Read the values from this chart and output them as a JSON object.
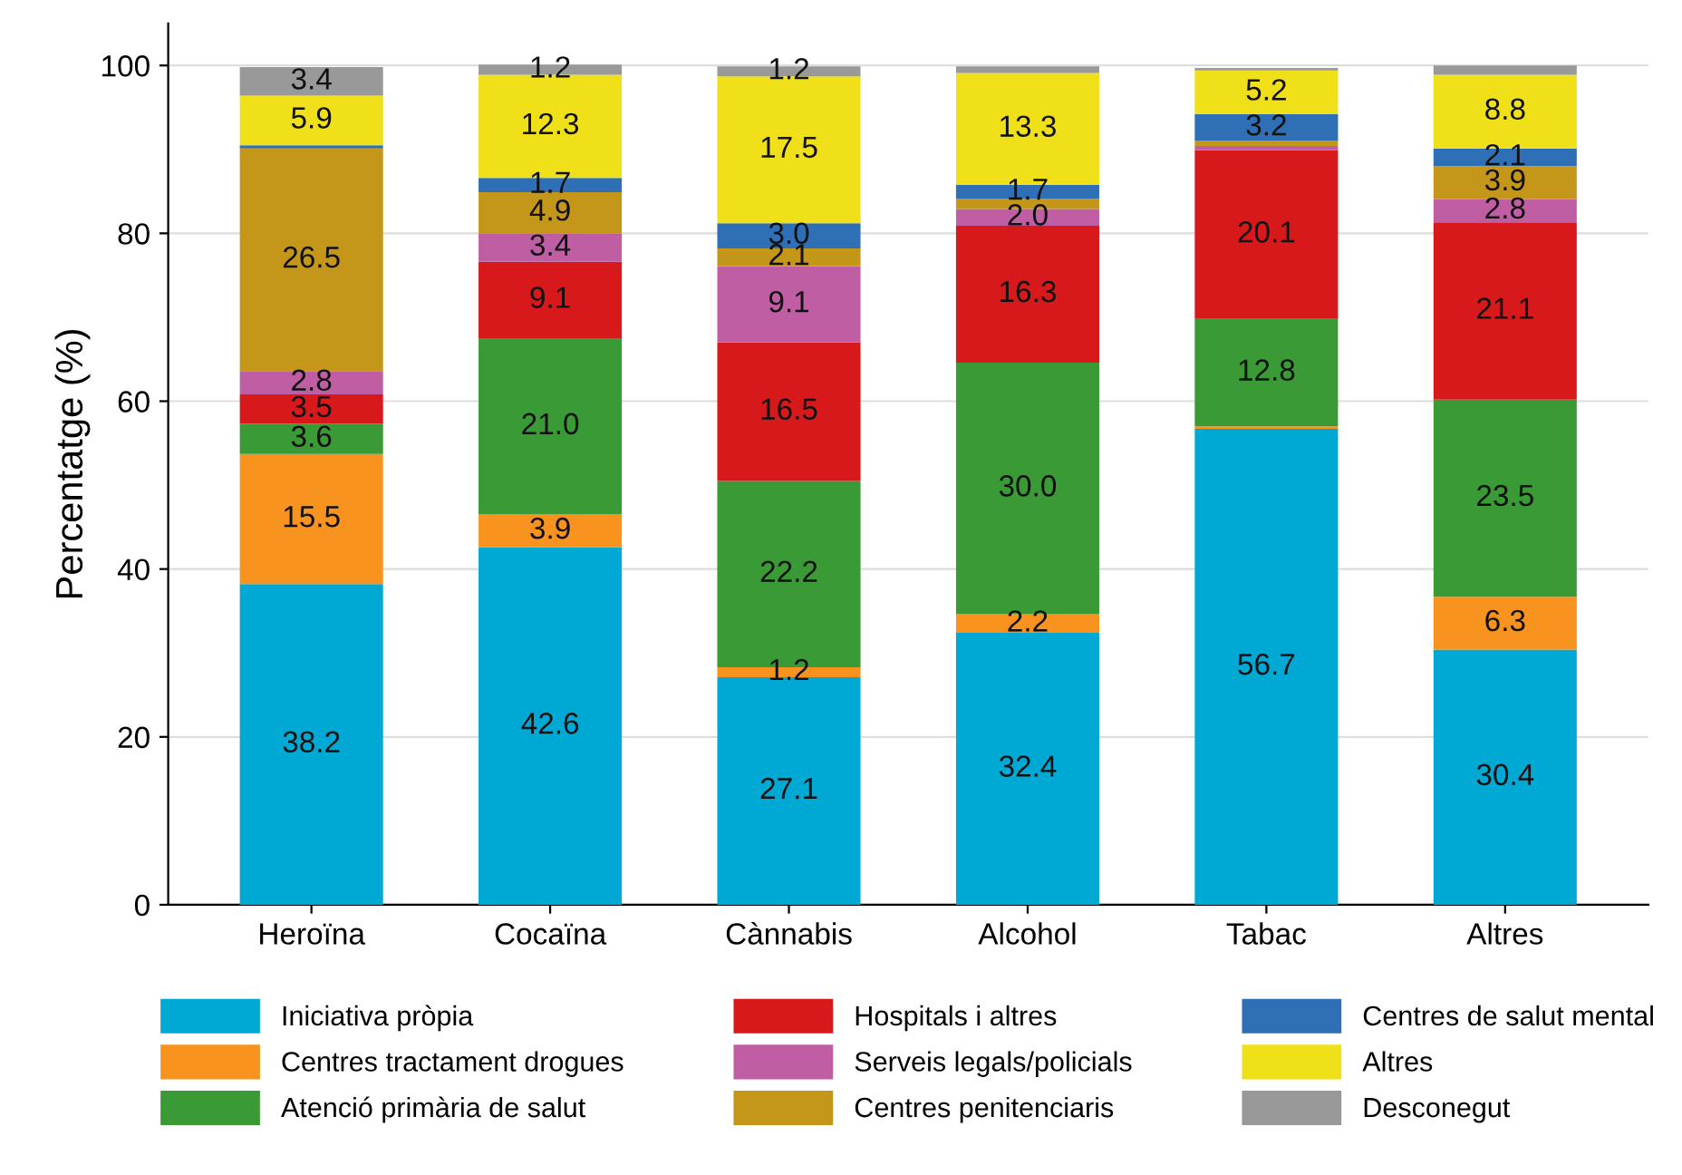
{
  "chart_data": {
    "type": "bar",
    "stacked": true,
    "ylabel": "Percentatge (%)",
    "categories": [
      "Heroïna",
      "Cocaïna",
      "Cànnabis",
      "Alcohol",
      "Tabac",
      "Altres"
    ],
    "ylim": [
      0,
      105
    ],
    "yticks": [
      0,
      20,
      40,
      60,
      80,
      100
    ],
    "grid": "y",
    "legend": "bottom",
    "series": [
      {
        "name": "Iniciativa pròpia",
        "color": "#00a9d4",
        "values": [
          38.2,
          42.6,
          27.1,
          32.4,
          56.7,
          30.4
        ],
        "value_labels": [
          "38.2",
          "42.6",
          "27.1",
          "32.4",
          "56.7",
          "30.4"
        ]
      },
      {
        "name": "Centres tractament drogues",
        "color": "#f7931e",
        "values": [
          15.5,
          3.9,
          1.2,
          2.2,
          0.3,
          6.3
        ],
        "value_labels": [
          "15.5",
          "3.9",
          "1.2",
          "2.2",
          null,
          "6.3"
        ]
      },
      {
        "name": "Atenció primària de salut",
        "color": "#3a9a35",
        "values": [
          3.6,
          21.0,
          22.2,
          30.0,
          12.8,
          23.5
        ],
        "value_labels": [
          "3.6",
          "21.0",
          "22.2",
          "30.0",
          "12.8",
          "23.5"
        ]
      },
      {
        "name": "Hospitals i altres",
        "color": "#d7191c",
        "values": [
          3.5,
          9.1,
          16.5,
          16.3,
          20.1,
          21.1
        ],
        "value_labels": [
          "3.5",
          "9.1",
          "16.5",
          "16.3",
          "20.1",
          "21.1"
        ]
      },
      {
        "name": "Serveis legals/policials",
        "color": "#c05ea3",
        "values": [
          2.8,
          3.4,
          9.1,
          2.0,
          0.5,
          2.8
        ],
        "value_labels": [
          "2.8",
          "3.4",
          "9.1",
          "2.0",
          null,
          "2.8"
        ]
      },
      {
        "name": "Centres penitenciaris",
        "color": "#c4961a",
        "values": [
          26.5,
          4.9,
          2.1,
          1.2,
          0.6,
          3.9
        ],
        "value_labels": [
          "26.5",
          "4.9",
          "2.1",
          null,
          null,
          "3.9"
        ]
      },
      {
        "name": "Centres de salut mental",
        "color": "#2e6fb5",
        "values": [
          0.4,
          1.7,
          3.0,
          1.7,
          3.2,
          2.1
        ],
        "value_labels": [
          null,
          "1.7",
          "3.0",
          "1.7",
          "3.2",
          "2.1"
        ]
      },
      {
        "name": "Altres",
        "color": "#f0e01a",
        "values": [
          5.9,
          12.3,
          17.5,
          13.3,
          5.2,
          8.8
        ],
        "value_labels": [
          "5.9",
          "12.3",
          "17.5",
          "13.3",
          "5.2",
          "8.8"
        ]
      },
      {
        "name": "Desconegut",
        "color": "#999999",
        "values": [
          3.4,
          1.2,
          1.2,
          0.8,
          0.3,
          1.1
        ],
        "value_labels": [
          "3.4",
          "1.2",
          "1.2",
          null,
          null,
          null
        ]
      }
    ]
  }
}
